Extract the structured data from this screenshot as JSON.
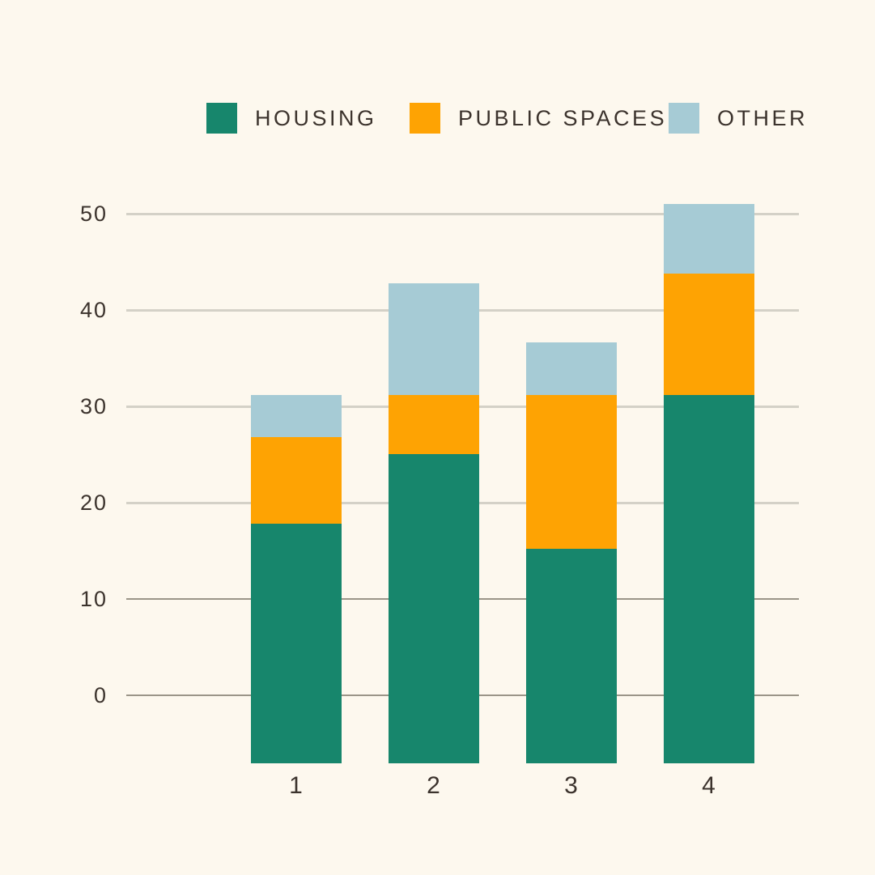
{
  "chart_data": {
    "type": "bar",
    "stacked": true,
    "title": "",
    "xlabel": "",
    "ylabel": "",
    "categories": [
      "1",
      "2",
      "3",
      "4"
    ],
    "series": [
      {
        "name": "HOUSING",
        "color": "#17866C",
        "values": [
          17.8,
          25.0,
          15.2,
          31.2
        ]
      },
      {
        "name": "PUBLIC SPACES",
        "color": "#FEA303",
        "values": [
          9.0,
          6.2,
          16.0,
          12.6
        ]
      },
      {
        "name": "OTHER",
        "color": "#A6CBD5",
        "values": [
          4.4,
          11.6,
          5.4,
          7.2
        ]
      }
    ],
    "stack_totals": [
      31.2,
      42.8,
      36.6,
      51.0
    ],
    "y_ticks": [
      50,
      40,
      30,
      20,
      10,
      0
    ],
    "ylim": [
      0,
      52
    ],
    "grid": true,
    "legend_position": "top"
  },
  "axes": {
    "y_tick_labels": [
      "50",
      "40",
      "30",
      "20",
      "10",
      "0"
    ],
    "x_tick_labels": [
      "1",
      "2",
      "3",
      "4"
    ]
  },
  "colors": {
    "background": "#FDF8EE",
    "text": "#3C332D",
    "gridline_light": "#D4D1C7",
    "gridline_dark": "#9B9588",
    "housing": "#17866C",
    "public_spaces": "#FEA303",
    "other": "#A6CBD5"
  }
}
